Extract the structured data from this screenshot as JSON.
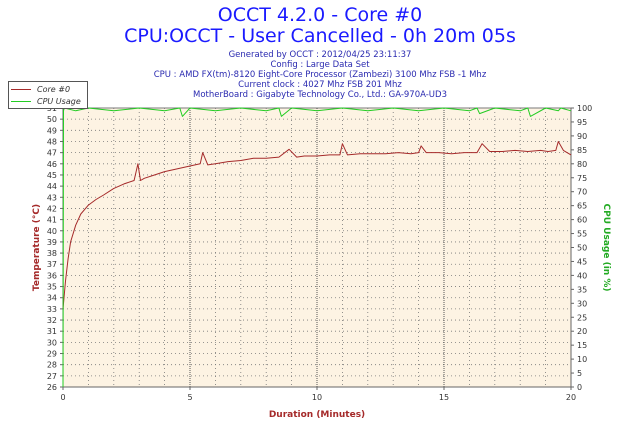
{
  "header": {
    "title": "OCCT 4.2.0 - Core #0",
    "subtitle": "CPU:OCCT - User Cancelled - 0h 20m 05s",
    "info_lines": [
      "Generated by OCCT : 2012/04/25 23:11:37",
      "Config : Large Data Set",
      "CPU : AMD FX(tm)-8120 Eight-Core Processor (Zambezi) 3100 Mhz FSB -1 Mhz",
      "Current clock : 4027 Mhz FSB 201 Mhz",
      "MotherBoard : Gigabyte Technology Co., Ltd.: GA-970A-UD3"
    ]
  },
  "legend": {
    "items": [
      {
        "label": "Core #0",
        "color": "#a52a2a"
      },
      {
        "label": "CPU Usage",
        "color": "#22cc22"
      }
    ]
  },
  "chart_data": {
    "type": "line",
    "xlabel": "Duration (Minutes)",
    "ylabel": "Temperature (°C)",
    "y2label": "CPU Usage (in %)",
    "xlim": [
      0,
      20
    ],
    "ylim": [
      26,
      51
    ],
    "y2lim": [
      0,
      100
    ],
    "x_ticks": [
      0,
      5,
      10,
      15,
      20
    ],
    "y_ticks": [
      26,
      27,
      28,
      29,
      30,
      31,
      32,
      33,
      34,
      35,
      36,
      37,
      38,
      39,
      40,
      41,
      42,
      43,
      44,
      45,
      46,
      47,
      48,
      49,
      50,
      51
    ],
    "y2_ticks": [
      0,
      5,
      10,
      15,
      20,
      25,
      30,
      35,
      40,
      45,
      50,
      55,
      60,
      65,
      70,
      75,
      80,
      85,
      90,
      95,
      100
    ],
    "grid": true,
    "background": "#fdf3e3",
    "series": [
      {
        "name": "Core #0",
        "color": "#a52a2a",
        "axis": "left",
        "x": [
          0,
          0.1,
          0.2,
          0.3,
          0.5,
          0.7,
          1.0,
          1.3,
          1.6,
          2.0,
          2.4,
          2.8,
          2.95,
          3.05,
          3.2,
          3.6,
          4.0,
          4.4,
          4.8,
          5.2,
          5.4,
          5.5,
          5.7,
          6.0,
          6.5,
          7.0,
          7.5,
          8.0,
          8.5,
          8.9,
          9.2,
          9.5,
          10.0,
          10.5,
          10.9,
          11.0,
          11.2,
          11.7,
          12.2,
          12.7,
          13.2,
          13.7,
          14.0,
          14.1,
          14.3,
          14.8,
          15.3,
          15.8,
          16.3,
          16.5,
          16.8,
          17.3,
          17.8,
          18.3,
          18.8,
          19.1,
          19.4,
          19.5,
          19.7,
          20.0
        ],
        "y": [
          33,
          35.5,
          37.5,
          39,
          40.5,
          41.5,
          42.3,
          42.8,
          43.2,
          43.8,
          44.2,
          44.5,
          46,
          44.5,
          44.7,
          45,
          45.3,
          45.5,
          45.7,
          45.9,
          46,
          47,
          45.9,
          46,
          46.2,
          46.3,
          46.5,
          46.5,
          46.6,
          47.3,
          46.6,
          46.7,
          46.7,
          46.8,
          46.8,
          47.8,
          46.8,
          46.9,
          46.9,
          46.9,
          47,
          46.9,
          47,
          47.6,
          47,
          47,
          46.9,
          47,
          47,
          47.8,
          47.1,
          47.1,
          47.2,
          47.1,
          47.2,
          47.1,
          47.2,
          48,
          47.2,
          46.8
        ]
      },
      {
        "name": "CPU Usage",
        "color": "#22cc22",
        "axis": "right",
        "x": [
          0,
          0.02,
          0.05,
          0.5,
          1.0,
          2.0,
          3.0,
          4.0,
          4.6,
          4.7,
          5.0,
          6.0,
          7.0,
          8.0,
          8.5,
          8.6,
          9.0,
          10.0,
          11.0,
          12.0,
          13.0,
          14.0,
          15.0,
          16.0,
          16.3,
          16.4,
          17.0,
          18.0,
          18.3,
          18.4,
          19.0,
          19.5,
          19.6,
          20.0
        ],
        "y": [
          0,
          99,
          100,
          99,
          100,
          99,
          100,
          99,
          100,
          97,
          100,
          99,
          100,
          99,
          100,
          97,
          100,
          99,
          100,
          99,
          100,
          99,
          100,
          99,
          100,
          98,
          100,
          99,
          100,
          97,
          100,
          99,
          100,
          99
        ]
      }
    ]
  }
}
